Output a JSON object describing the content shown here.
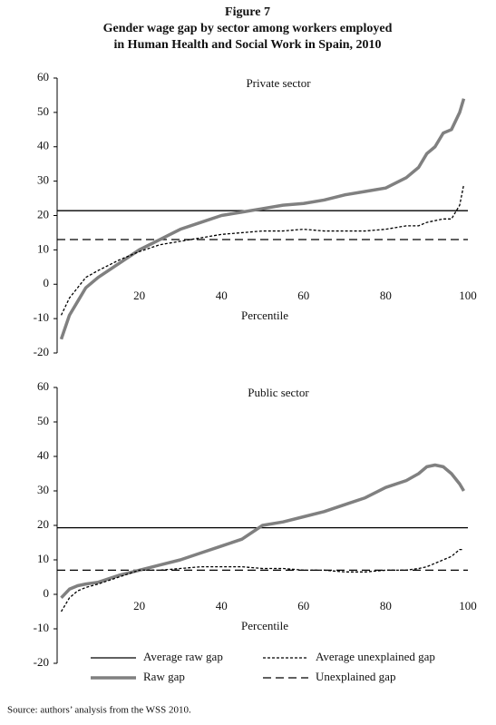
{
  "figure_label": "Figure 7",
  "title_lines": [
    "Gender wage gap by sector among workers employed",
    "in Human Health and Social Work in Spain, 2010"
  ],
  "source": "Source: authors’ analysis from the WSS 2010.",
  "chart_data": [
    {
      "type": "line",
      "title": "Private sector",
      "x_label": "Percentile",
      "x": [
        1,
        3,
        5,
        7,
        10,
        15,
        20,
        25,
        30,
        35,
        40,
        45,
        50,
        55,
        60,
        65,
        70,
        75,
        80,
        85,
        88,
        90,
        92,
        94,
        96,
        98,
        99
      ],
      "xlim": [
        0,
        100
      ],
      "xticks": [
        20,
        40,
        60,
        80,
        100
      ],
      "ylim": [
        -20,
        60
      ],
      "yticks": [
        -20,
        -10,
        0,
        10,
        20,
        30,
        40,
        50,
        60
      ],
      "series": [
        {
          "name": "Raw gap",
          "color": "#808080",
          "style": "thick",
          "values": [
            -16,
            -9,
            -5,
            -1,
            2,
            6,
            10,
            13,
            16,
            18,
            20,
            21,
            22,
            23,
            23.5,
            24.5,
            26,
            27,
            28,
            31,
            34,
            38,
            40,
            44,
            45,
            50,
            54
          ]
        },
        {
          "name": "Average unexplained gap",
          "color": "#000000",
          "style": "short-dash",
          "values": [
            -9,
            -4,
            -1,
            2,
            4,
            7,
            9.5,
            11.5,
            12.5,
            13.5,
            14.5,
            15,
            15.5,
            15.5,
            16,
            15.5,
            15.5,
            15.5,
            16,
            17,
            17,
            18,
            18.5,
            19,
            19,
            23,
            29
          ]
        }
      ],
      "reference_lines": [
        {
          "name": "Average raw gap",
          "value": 21.4,
          "color": "#000000",
          "style": "solid"
        },
        {
          "name": "Unexplained gap",
          "value": 13,
          "color": "#000000",
          "style": "long-dash"
        }
      ]
    },
    {
      "type": "line",
      "title": "Public sector",
      "x_label": "Percentile",
      "x": [
        1,
        3,
        5,
        7,
        10,
        15,
        20,
        25,
        30,
        35,
        40,
        45,
        50,
        55,
        60,
        65,
        70,
        75,
        80,
        85,
        88,
        90,
        92,
        94,
        96,
        98,
        99
      ],
      "xlim": [
        0,
        100
      ],
      "xticks": [
        20,
        40,
        60,
        80,
        100
      ],
      "ylim": [
        -20,
        60
      ],
      "yticks": [
        -20,
        -10,
        0,
        10,
        20,
        30,
        40,
        50,
        60
      ],
      "series": [
        {
          "color": "#808080",
          "style": "thick",
          "values": [
            -1,
            1.5,
            2.5,
            3,
            3.5,
            5.5,
            7,
            8.5,
            10,
            12,
            14,
            16,
            20,
            21,
            22.5,
            24,
            26,
            28,
            31,
            33,
            35,
            37,
            37.5,
            37,
            35,
            32,
            30
          ]
        },
        {
          "color": "#000000",
          "style": "short-dash",
          "values": [
            -5,
            -1,
            1,
            2,
            3,
            5,
            7,
            7,
            7.5,
            8,
            8,
            8,
            7.5,
            7.5,
            7,
            7,
            6.5,
            6.5,
            7,
            7,
            7.5,
            8,
            9,
            10,
            11,
            13,
            13
          ]
        }
      ],
      "reference_lines": [
        {
          "value": 19.3,
          "color": "#000000",
          "style": "solid"
        },
        {
          "value": 7,
          "color": "#000000",
          "style": "long-dash"
        }
      ]
    }
  ]
}
